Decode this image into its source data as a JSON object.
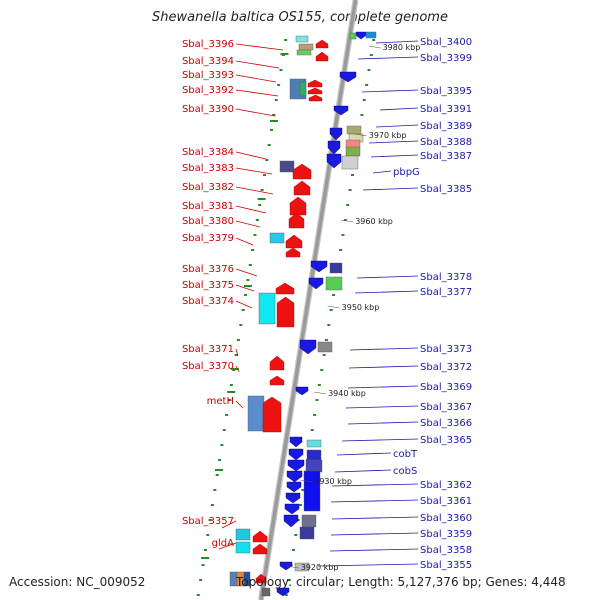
{
  "title": "Shewanella baltica OS155, complete genome",
  "footer": {
    "accession": "Accession: NC_009052",
    "summary": "Topology: circular; Length: 5,127,376 bp; Genes: 4,448"
  },
  "colors": {
    "forward": "#ee1111",
    "reverse": "#1a1adf",
    "forward_label": "#cc0000",
    "reverse_label": "#1a1aaa",
    "backbone": "#9a9a9a",
    "tick": "#2a8a2a"
  },
  "kbp_marks": [
    "3980 kbp",
    "3970 kbp",
    "3960 kbp",
    "3950 kbp",
    "3940 kbp",
    "3930 kbp",
    "3920 kbp"
  ],
  "left_labels": [
    "Sbal_3396",
    "Sbal_3394",
    "Sbal_3393",
    "Sbal_3392",
    "Sbal_3390",
    "Sbal_3384",
    "Sbal_3383",
    "Sbal_3382",
    "Sbal_3381",
    "Sbal_3380",
    "Sbal_3379",
    "Sbal_3376",
    "Sbal_3375",
    "Sbal_3374",
    "Sbal_3371",
    "Sbal_3370",
    "metH",
    "Sbal_3357",
    "gldA"
  ],
  "right_labels": [
    "Sbal_3400",
    "Sbal_3399",
    "Sbal_3395",
    "Sbal_3391",
    "Sbal_3389",
    "Sbal_3388",
    "Sbal_3387",
    "pbpG",
    "Sbal_3385",
    "Sbal_3378",
    "Sbal_3377",
    "Sbal_3373",
    "Sbal_3372",
    "Sbal_3369",
    "Sbal_3367",
    "Sbal_3366",
    "Sbal_3365",
    "cobT",
    "cobS",
    "Sbal_3362",
    "Sbal_3361",
    "Sbal_3360",
    "Sbal_3359",
    "Sbal_3358",
    "Sbal_3355"
  ]
}
